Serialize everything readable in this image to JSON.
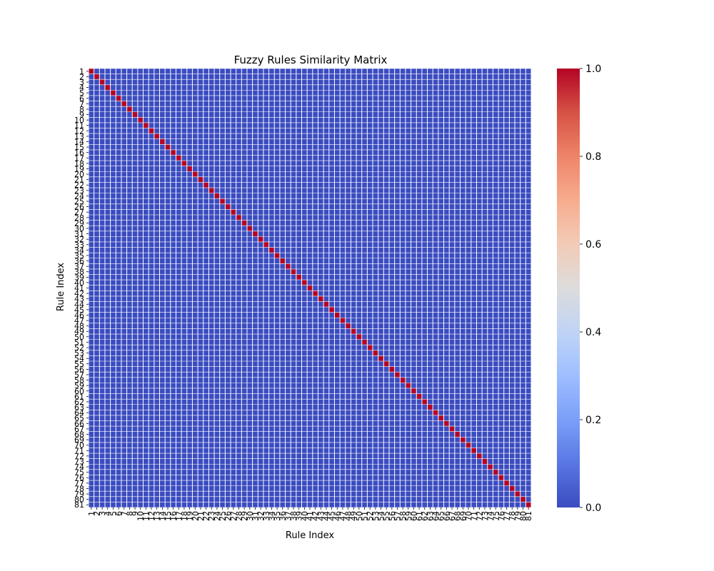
{
  "chart_data": {
    "type": "heatmap",
    "title": "Fuzzy Rules Similarity Matrix",
    "xlabel": "Rule Index",
    "ylabel": "Rule Index",
    "n": 81,
    "x_tick_labels": [
      "1",
      "2",
      "3",
      "4",
      "5",
      "6",
      "7",
      "8",
      "9",
      "10",
      "11",
      "12",
      "13",
      "14",
      "15",
      "16",
      "17",
      "18",
      "19",
      "20",
      "21",
      "22",
      "23",
      "24",
      "25",
      "26",
      "27",
      "28",
      "29",
      "30",
      "31",
      "32",
      "33",
      "34",
      "35",
      "36",
      "37",
      "38",
      "39",
      "40",
      "41",
      "42",
      "43",
      "44",
      "45",
      "46",
      "47",
      "48",
      "49",
      "50",
      "51",
      "52",
      "53",
      "54",
      "55",
      "56",
      "57",
      "58",
      "59",
      "60",
      "61",
      "62",
      "63",
      "64",
      "65",
      "66",
      "67",
      "68",
      "69",
      "70",
      "71",
      "72",
      "73",
      "74",
      "75",
      "76",
      "77",
      "78",
      "79",
      "80",
      "81"
    ],
    "y_tick_labels": [
      "1",
      "2",
      "3",
      "4",
      "5",
      "6",
      "7",
      "8",
      "9",
      "10",
      "11",
      "12",
      "13",
      "14",
      "15",
      "16",
      "17",
      "18",
      "19",
      "20",
      "21",
      "22",
      "23",
      "24",
      "25",
      "26",
      "27",
      "28",
      "29",
      "30",
      "31",
      "32",
      "33",
      "34",
      "35",
      "36",
      "37",
      "38",
      "39",
      "40",
      "41",
      "42",
      "43",
      "44",
      "45",
      "46",
      "47",
      "48",
      "49",
      "50",
      "51",
      "52",
      "53",
      "54",
      "55",
      "56",
      "57",
      "58",
      "59",
      "60",
      "61",
      "62",
      "63",
      "64",
      "65",
      "66",
      "67",
      "68",
      "69",
      "70",
      "71",
      "72",
      "73",
      "74",
      "75",
      "76",
      "77",
      "78",
      "79",
      "80",
      "81"
    ],
    "diagonal_value": 1.0,
    "off_diagonal_value": 0.0,
    "colormap": "coolwarm",
    "colormap_low": "#3b4cc0",
    "colormap_mid": "#dddddd",
    "colormap_high": "#b40426",
    "grid_line_color": "#ffffff",
    "colorbar": {
      "range": [
        0.0,
        1.0
      ],
      "ticks": [
        "0.0",
        "0.2",
        "0.4",
        "0.6",
        "0.8",
        "1.0"
      ],
      "tick_values": [
        0.0,
        0.2,
        0.4,
        0.6,
        0.8,
        1.0
      ]
    },
    "legend": "none"
  }
}
